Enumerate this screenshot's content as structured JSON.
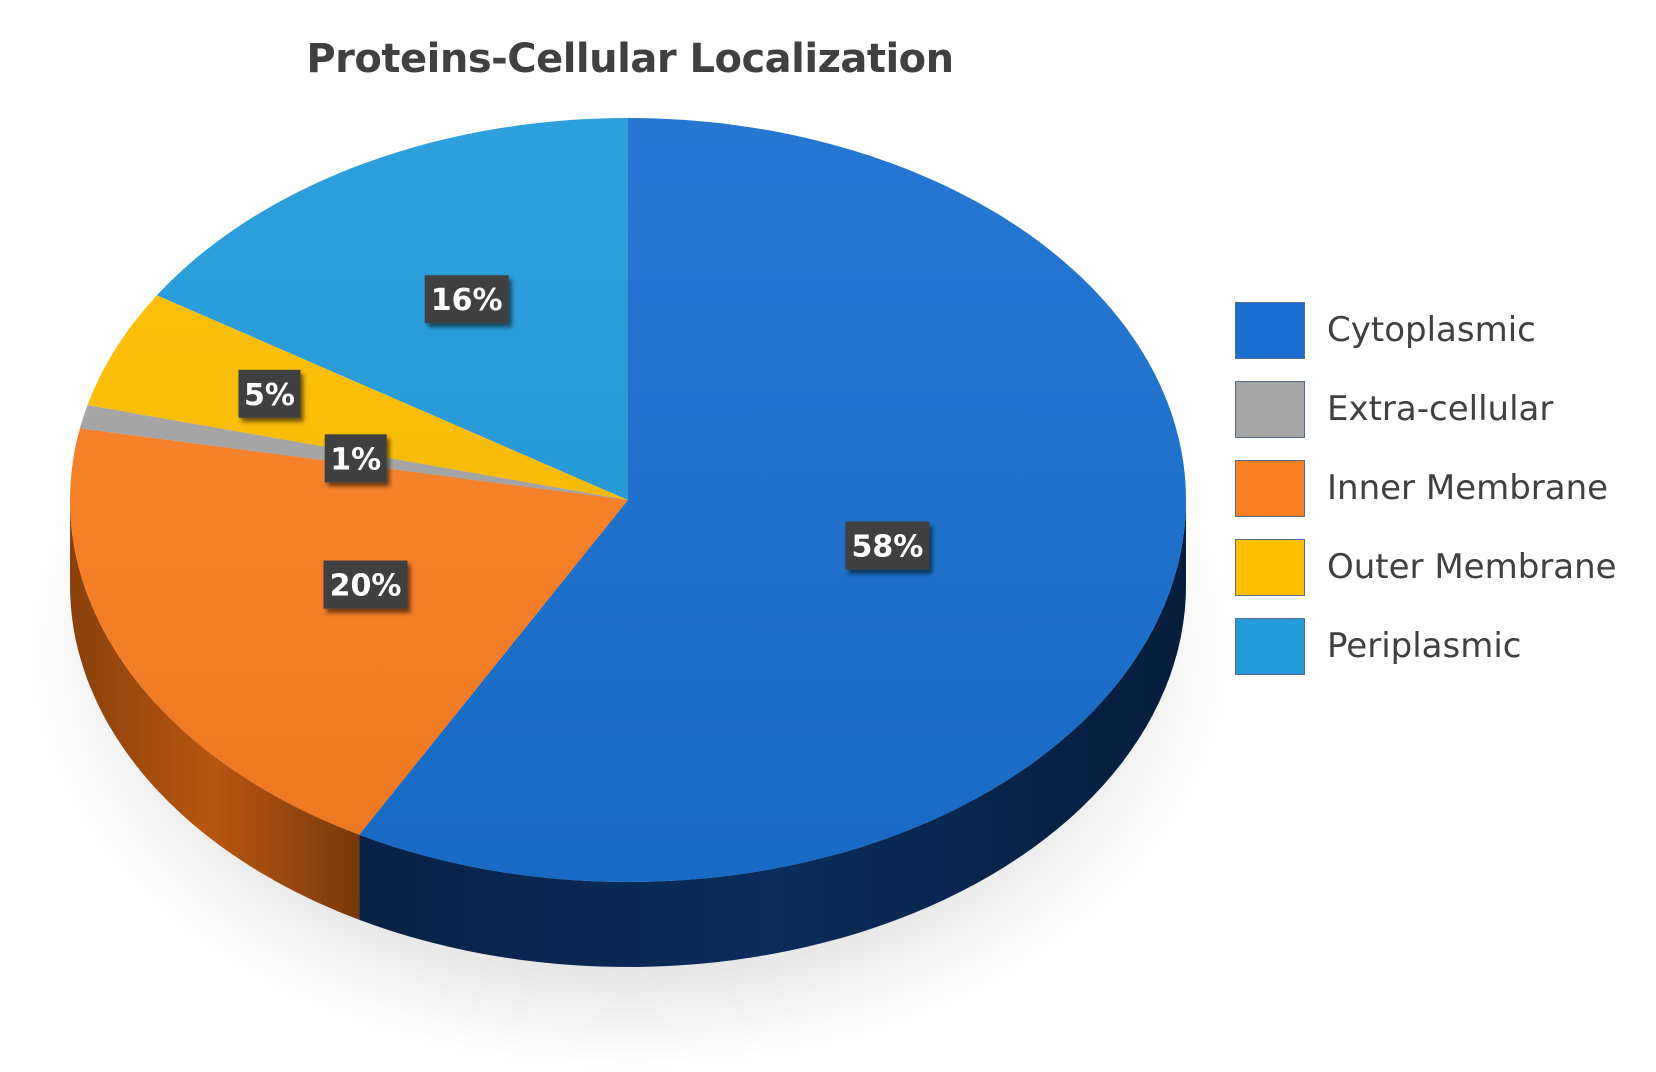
{
  "chart_data": {
    "type": "pie",
    "title": "Proteins-Cellular Localization",
    "legend_position": "right",
    "slices": [
      {
        "label": "Cytoplasmic",
        "value": 58,
        "data_label": "58%",
        "color": "#1a70d0",
        "side_color": "#0a2d5c"
      },
      {
        "label": "Inner Membrane",
        "value": 20,
        "data_label": "20%",
        "color": "#fb8024",
        "side_color": "#b8560f"
      },
      {
        "label": "Extra-cellular",
        "value": 1,
        "data_label": "1%",
        "color": "#a6a6a6",
        "side_color": "#6e6e6e"
      },
      {
        "label": "Outer Membrane",
        "value": 5,
        "data_label": "5%",
        "color": "#ffbf00",
        "side_color": "#b98a00"
      },
      {
        "label": "Periplasmic",
        "value": 16,
        "data_label": "16%",
        "color": "#239bdb",
        "side_color": "#13679a"
      }
    ],
    "legend": [
      {
        "label": "Cytoplasmic",
        "color": "#1a70d0"
      },
      {
        "label": "Extra-cellular",
        "color": "#a6a6a6"
      },
      {
        "label": "Inner Membrane",
        "color": "#fb8024"
      },
      {
        "label": "Outer Membrane",
        "color": "#ffbf00"
      },
      {
        "label": "Periplasmic",
        "color": "#239bdb"
      }
    ]
  }
}
